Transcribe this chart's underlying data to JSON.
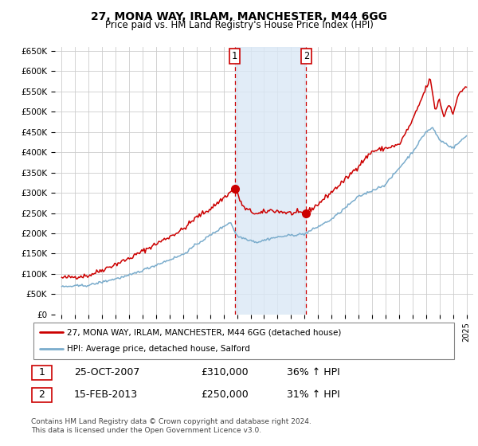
{
  "title1": "27, MONA WAY, IRLAM, MANCHESTER, M44 6GG",
  "title2": "Price paid vs. HM Land Registry's House Price Index (HPI)",
  "ylim": [
    0,
    660000
  ],
  "yticks": [
    0,
    50000,
    100000,
    150000,
    200000,
    250000,
    300000,
    350000,
    400000,
    450000,
    500000,
    550000,
    600000,
    650000
  ],
  "background_color": "#ffffff",
  "plot_bg": "#ffffff",
  "grid_color": "#cccccc",
  "span_color": "#dae8f5",
  "red_color": "#cc0000",
  "blue_color": "#7aaccc",
  "sale1_x": 2007.82,
  "sale1_y": 310000,
  "sale1_label": "1",
  "sale1_date": "25-OCT-2007",
  "sale1_price": "£310,000",
  "sale1_hpi": "36% ↑ HPI",
  "sale2_x": 2013.12,
  "sale2_y": 250000,
  "sale2_label": "2",
  "sale2_date": "15-FEB-2013",
  "sale2_price": "£250,000",
  "sale2_hpi": "31% ↑ HPI",
  "legend_label1": "27, MONA WAY, IRLAM, MANCHESTER, M44 6GG (detached house)",
  "legend_label2": "HPI: Average price, detached house, Salford",
  "footer": "Contains HM Land Registry data © Crown copyright and database right 2024.\nThis data is licensed under the Open Government Licence v3.0.",
  "xmin": 1994.5,
  "xmax": 2025.5
}
